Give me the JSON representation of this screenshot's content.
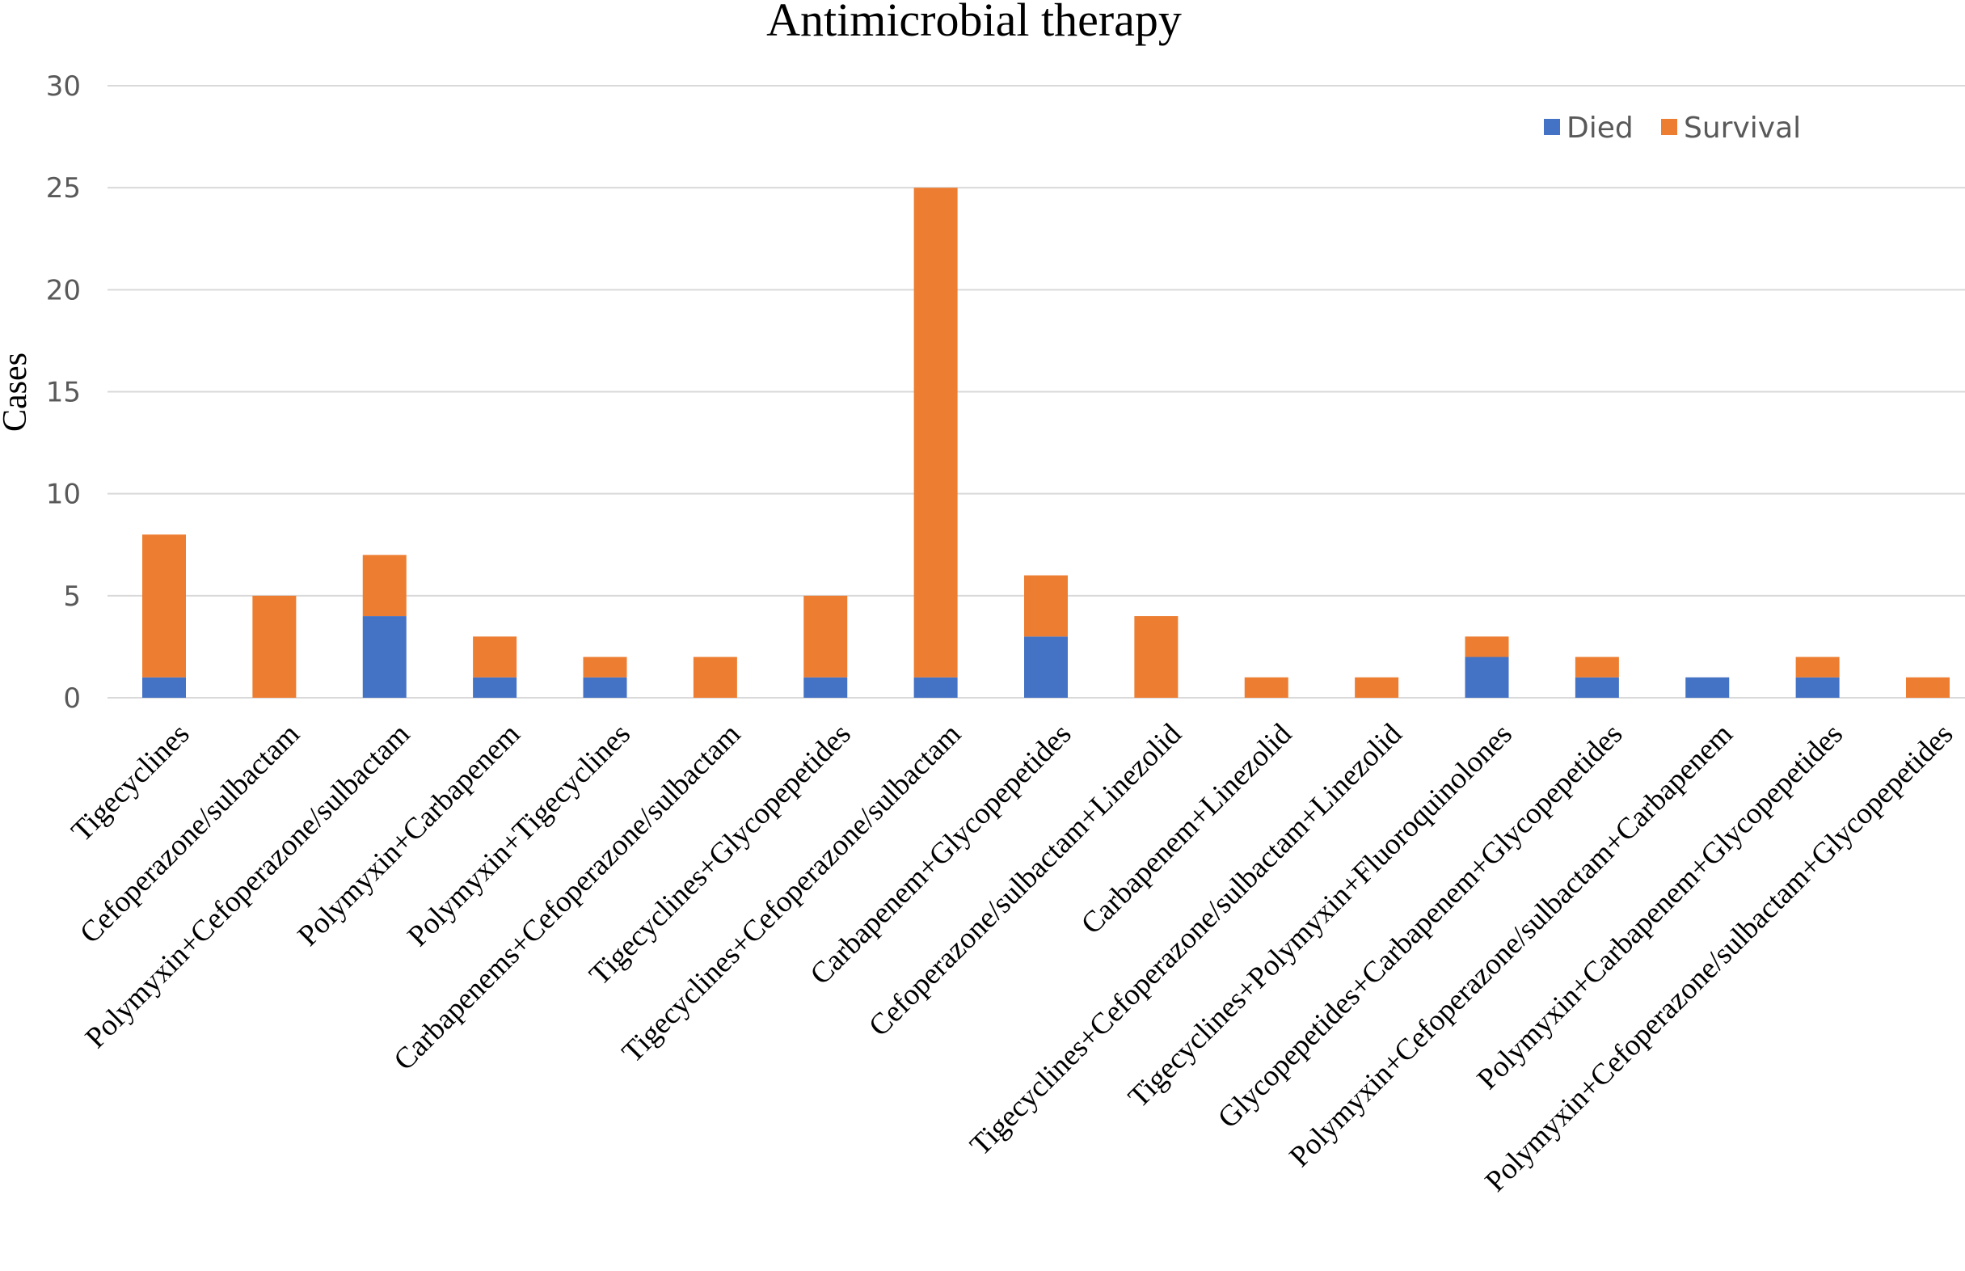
{
  "chart_data": {
    "type": "bar",
    "stacked": true,
    "title": "Antimicrobial therapy",
    "xlabel": "",
    "ylabel": "Cases",
    "ylim": [
      0,
      30
    ],
    "yticks": [
      0,
      5,
      10,
      15,
      20,
      25,
      30
    ],
    "grid": true,
    "legend_position": "top-right",
    "categories": [
      "Tigecyclines",
      "Cefoperazone/sulbactam",
      "Polymyxin+Cefoperazone/sulbactam",
      "Polymyxin+Carbapenem",
      "Polymyxin+Tigecyclines",
      "Carbapenems+Cefoperazone/sulbactam",
      "Tigecyclines+Glycopepetides",
      "Tigecyclines+Cefoperazone/sulbactam",
      "Carbapenem+Glycopepetides",
      "Cefoperazone/sulbactam+Linezolid",
      "Carbapenem+Linezolid",
      "Tigecyclines+Cefoperazone/sulbactam+Linezolid",
      "Tigecyclines+Polymyxin+Fluoroquinolones",
      "Glycopepetides+Carbapenem+Glycopepetides",
      "Polymyxin+Cefoperazone/sulbactam+Carbapenem",
      "Polymyxin+Carbapenem+Glycopepetides",
      "Polymyxin+Cefoperazone/sulbactam+Glycopepetides"
    ],
    "series": [
      {
        "name": "Died",
        "color": "#4472c4",
        "values": [
          1,
          0,
          4,
          1,
          1,
          0,
          1,
          1,
          3,
          0,
          0,
          0,
          2,
          1,
          1,
          1,
          0
        ]
      },
      {
        "name": "Survival",
        "color": "#ed7d31",
        "values": [
          7,
          5,
          3,
          2,
          1,
          2,
          4,
          24,
          3,
          4,
          1,
          1,
          1,
          1,
          0,
          1,
          1
        ]
      }
    ]
  }
}
